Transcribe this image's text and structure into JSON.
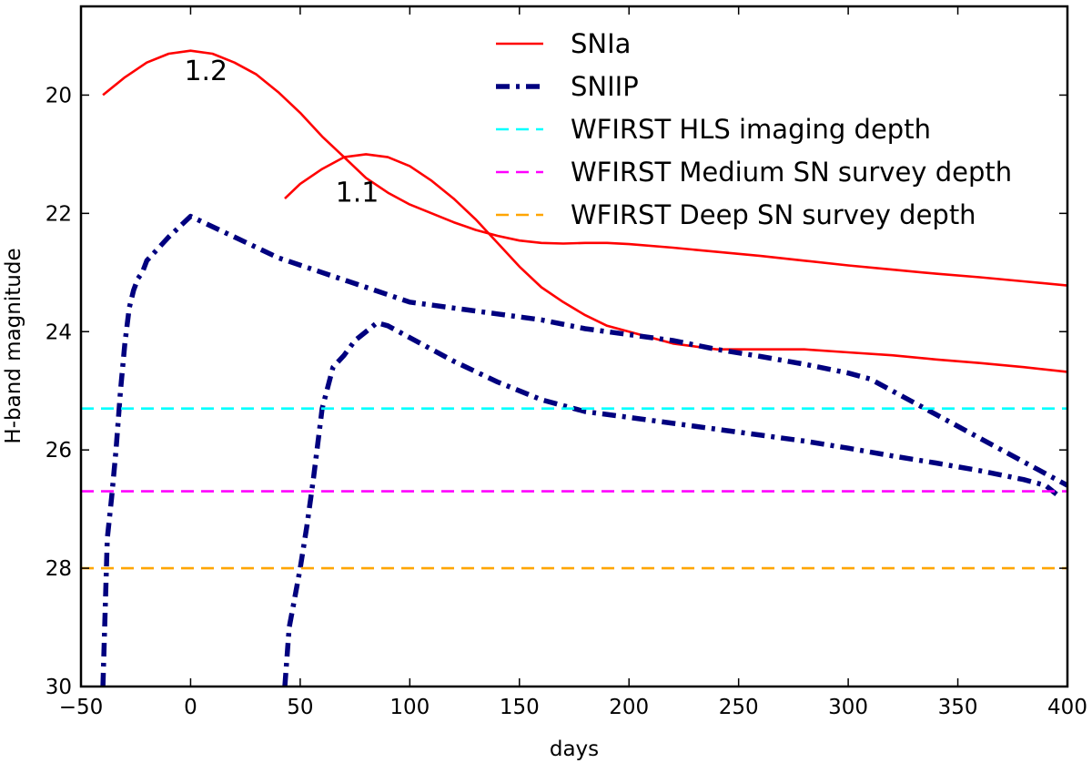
{
  "chart_data": {
    "type": "line",
    "title": "",
    "xlabel": "days",
    "ylabel": "H-band magnitude",
    "xlim": [
      -50,
      400
    ],
    "ylim": [
      30,
      18.5
    ],
    "y_inverted": true,
    "xticks": [
      -50,
      0,
      50,
      100,
      150,
      200,
      250,
      300,
      350,
      400
    ],
    "xtick_labels": [
      "−50",
      "0",
      "50",
      "100",
      "150",
      "200",
      "250",
      "300",
      "350",
      "400"
    ],
    "yticks": [
      20,
      22,
      24,
      26,
      28,
      30
    ],
    "ytick_labels": [
      "20",
      "22",
      "24",
      "26",
      "28",
      "30"
    ],
    "grid": false,
    "legend_position": "top-right",
    "series": [
      {
        "name": "SNIa",
        "label": "SNIa",
        "color": "#ff0000",
        "style": "solid",
        "x": [
          -40,
          -30,
          -20,
          -10,
          0,
          10,
          20,
          30,
          40,
          50,
          60,
          70,
          80,
          90,
          100,
          110,
          120,
          130,
          140,
          150,
          160,
          170,
          180,
          190,
          200,
          220,
          240,
          260,
          280,
          300,
          320,
          340,
          360,
          380,
          400
        ],
        "y": [
          20.0,
          19.7,
          19.45,
          19.3,
          19.25,
          19.3,
          19.45,
          19.65,
          19.95,
          20.3,
          20.7,
          21.05,
          21.4,
          21.65,
          21.85,
          22.0,
          22.15,
          22.28,
          22.38,
          22.46,
          22.5,
          22.51,
          22.5,
          22.5,
          22.52,
          22.58,
          22.65,
          22.72,
          22.8,
          22.88,
          22.95,
          23.02,
          23.08,
          23.15,
          23.22
        ]
      },
      {
        "name": "SNIa (z=1.1)",
        "label": "",
        "color": "#ff0000",
        "style": "solid",
        "x": [
          43,
          50,
          60,
          70,
          80,
          90,
          100,
          110,
          120,
          130,
          140,
          150,
          160,
          170,
          180,
          190,
          200,
          220,
          240,
          260,
          280,
          300,
          320,
          340,
          360,
          380,
          400
        ],
        "y": [
          21.75,
          21.5,
          21.25,
          21.05,
          21.0,
          21.05,
          21.2,
          21.45,
          21.75,
          22.1,
          22.5,
          22.9,
          23.25,
          23.5,
          23.72,
          23.9,
          24.0,
          24.2,
          24.3,
          24.3,
          24.3,
          24.35,
          24.4,
          24.47,
          24.53,
          24.6,
          24.68
        ]
      },
      {
        "name": "SNIIP",
        "label": "SNIIP",
        "color": "#00007f",
        "style": "dashdot",
        "x": [
          -40,
          -38,
          -36,
          -34,
          -32,
          -30,
          -28,
          -26,
          -24,
          -22,
          -20,
          -10,
          0,
          20,
          40,
          60,
          80,
          100,
          120,
          140,
          160,
          180,
          200,
          220,
          240,
          260,
          280,
          300,
          310,
          320,
          330,
          340,
          350,
          360,
          370,
          380,
          390,
          400
        ],
        "y": [
          30.0,
          27.5,
          26.8,
          26.0,
          25.0,
          24.2,
          23.6,
          23.3,
          23.1,
          23.0,
          22.8,
          22.4,
          22.05,
          22.4,
          22.75,
          23.0,
          23.25,
          23.5,
          23.6,
          23.7,
          23.8,
          23.95,
          24.05,
          24.15,
          24.3,
          24.42,
          24.55,
          24.7,
          24.8,
          25.0,
          25.2,
          25.4,
          25.6,
          25.8,
          26.0,
          26.2,
          26.4,
          26.6
        ]
      },
      {
        "name": "SNIIP (z=1.1)",
        "label": "",
        "color": "#00007f",
        "style": "dashdot",
        "x": [
          43,
          45,
          47,
          50,
          53,
          56,
          60,
          65,
          70,
          75,
          80,
          85,
          90,
          100,
          120,
          140,
          160,
          180,
          200,
          220,
          240,
          260,
          280,
          300,
          320,
          340,
          360,
          380,
          390,
          395
        ],
        "y": [
          30.0,
          29.0,
          28.6,
          28.0,
          27.3,
          26.5,
          25.3,
          24.6,
          24.4,
          24.15,
          24.0,
          23.85,
          23.9,
          24.1,
          24.5,
          24.85,
          25.15,
          25.35,
          25.45,
          25.55,
          25.65,
          25.75,
          25.85,
          25.97,
          26.1,
          26.22,
          26.35,
          26.5,
          26.6,
          26.75
        ]
      },
      {
        "name": "WFIRST HLS imaging depth",
        "label": "WFIRST HLS imaging depth",
        "color": "#00ffff",
        "style": "dashed",
        "x": [
          -50,
          400
        ],
        "y": [
          25.3,
          25.3
        ]
      },
      {
        "name": "WFIRST Medium SN survey depth",
        "label": "WFIRST Medium SN survey depth",
        "color": "#ff00ff",
        "style": "dashed",
        "x": [
          -50,
          400
        ],
        "y": [
          26.7,
          26.7
        ]
      },
      {
        "name": "WFIRST Deep SN survey depth",
        "label": "WFIRST Deep SN survey depth",
        "color": "#ffa500",
        "style": "dashed",
        "x": [
          -50,
          400
        ],
        "y": [
          28.0,
          28.0
        ]
      }
    ],
    "annotations": [
      {
        "text": "1.2",
        "x": 7,
        "y": 19.75
      },
      {
        "text": "1.1",
        "x": 76,
        "y": 21.8
      }
    ]
  }
}
